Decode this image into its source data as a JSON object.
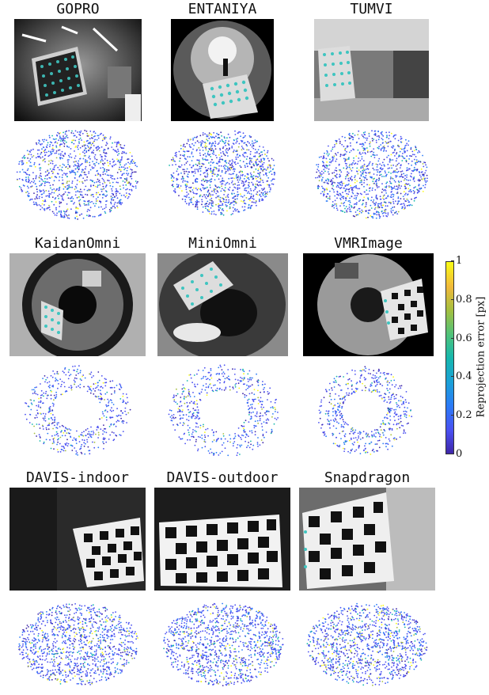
{
  "panels": [
    {
      "key": "gopro",
      "title": "GOPRO",
      "distribution": "blob"
    },
    {
      "key": "entaniya",
      "title": "ENTANIYA",
      "distribution": "blob"
    },
    {
      "key": "tumvi",
      "title": "TUMVI",
      "distribution": "blob"
    },
    {
      "key": "kaidanomni",
      "title": "KaidanOmni",
      "distribution": "ring"
    },
    {
      "key": "miniomni",
      "title": "MiniOmni",
      "distribution": "ring"
    },
    {
      "key": "vmrimage",
      "title": "VMRImage",
      "distribution": "ring"
    },
    {
      "key": "davis-indoor",
      "title": "DAVIS-indoor",
      "distribution": "blob"
    },
    {
      "key": "davis-outdoor",
      "title": "DAVIS-outdoor",
      "distribution": "blob"
    },
    {
      "key": "snapdragon",
      "title": "Snapdragon",
      "distribution": "blob"
    }
  ],
  "colorbar": {
    "label": "Reprojection error [px]",
    "ticks": [
      "0",
      "0.2",
      "0.4",
      "0.6",
      "0.8",
      "1"
    ],
    "min": 0,
    "max": 1,
    "colormap": "parula",
    "colors": [
      "#3e26a8",
      "#4a50f1",
      "#2b7bf7",
      "#1ba0d8",
      "#16b7ad",
      "#4fc27a",
      "#a5bf3f",
      "#f1b93b",
      "#f9fb15"
    ]
  }
}
